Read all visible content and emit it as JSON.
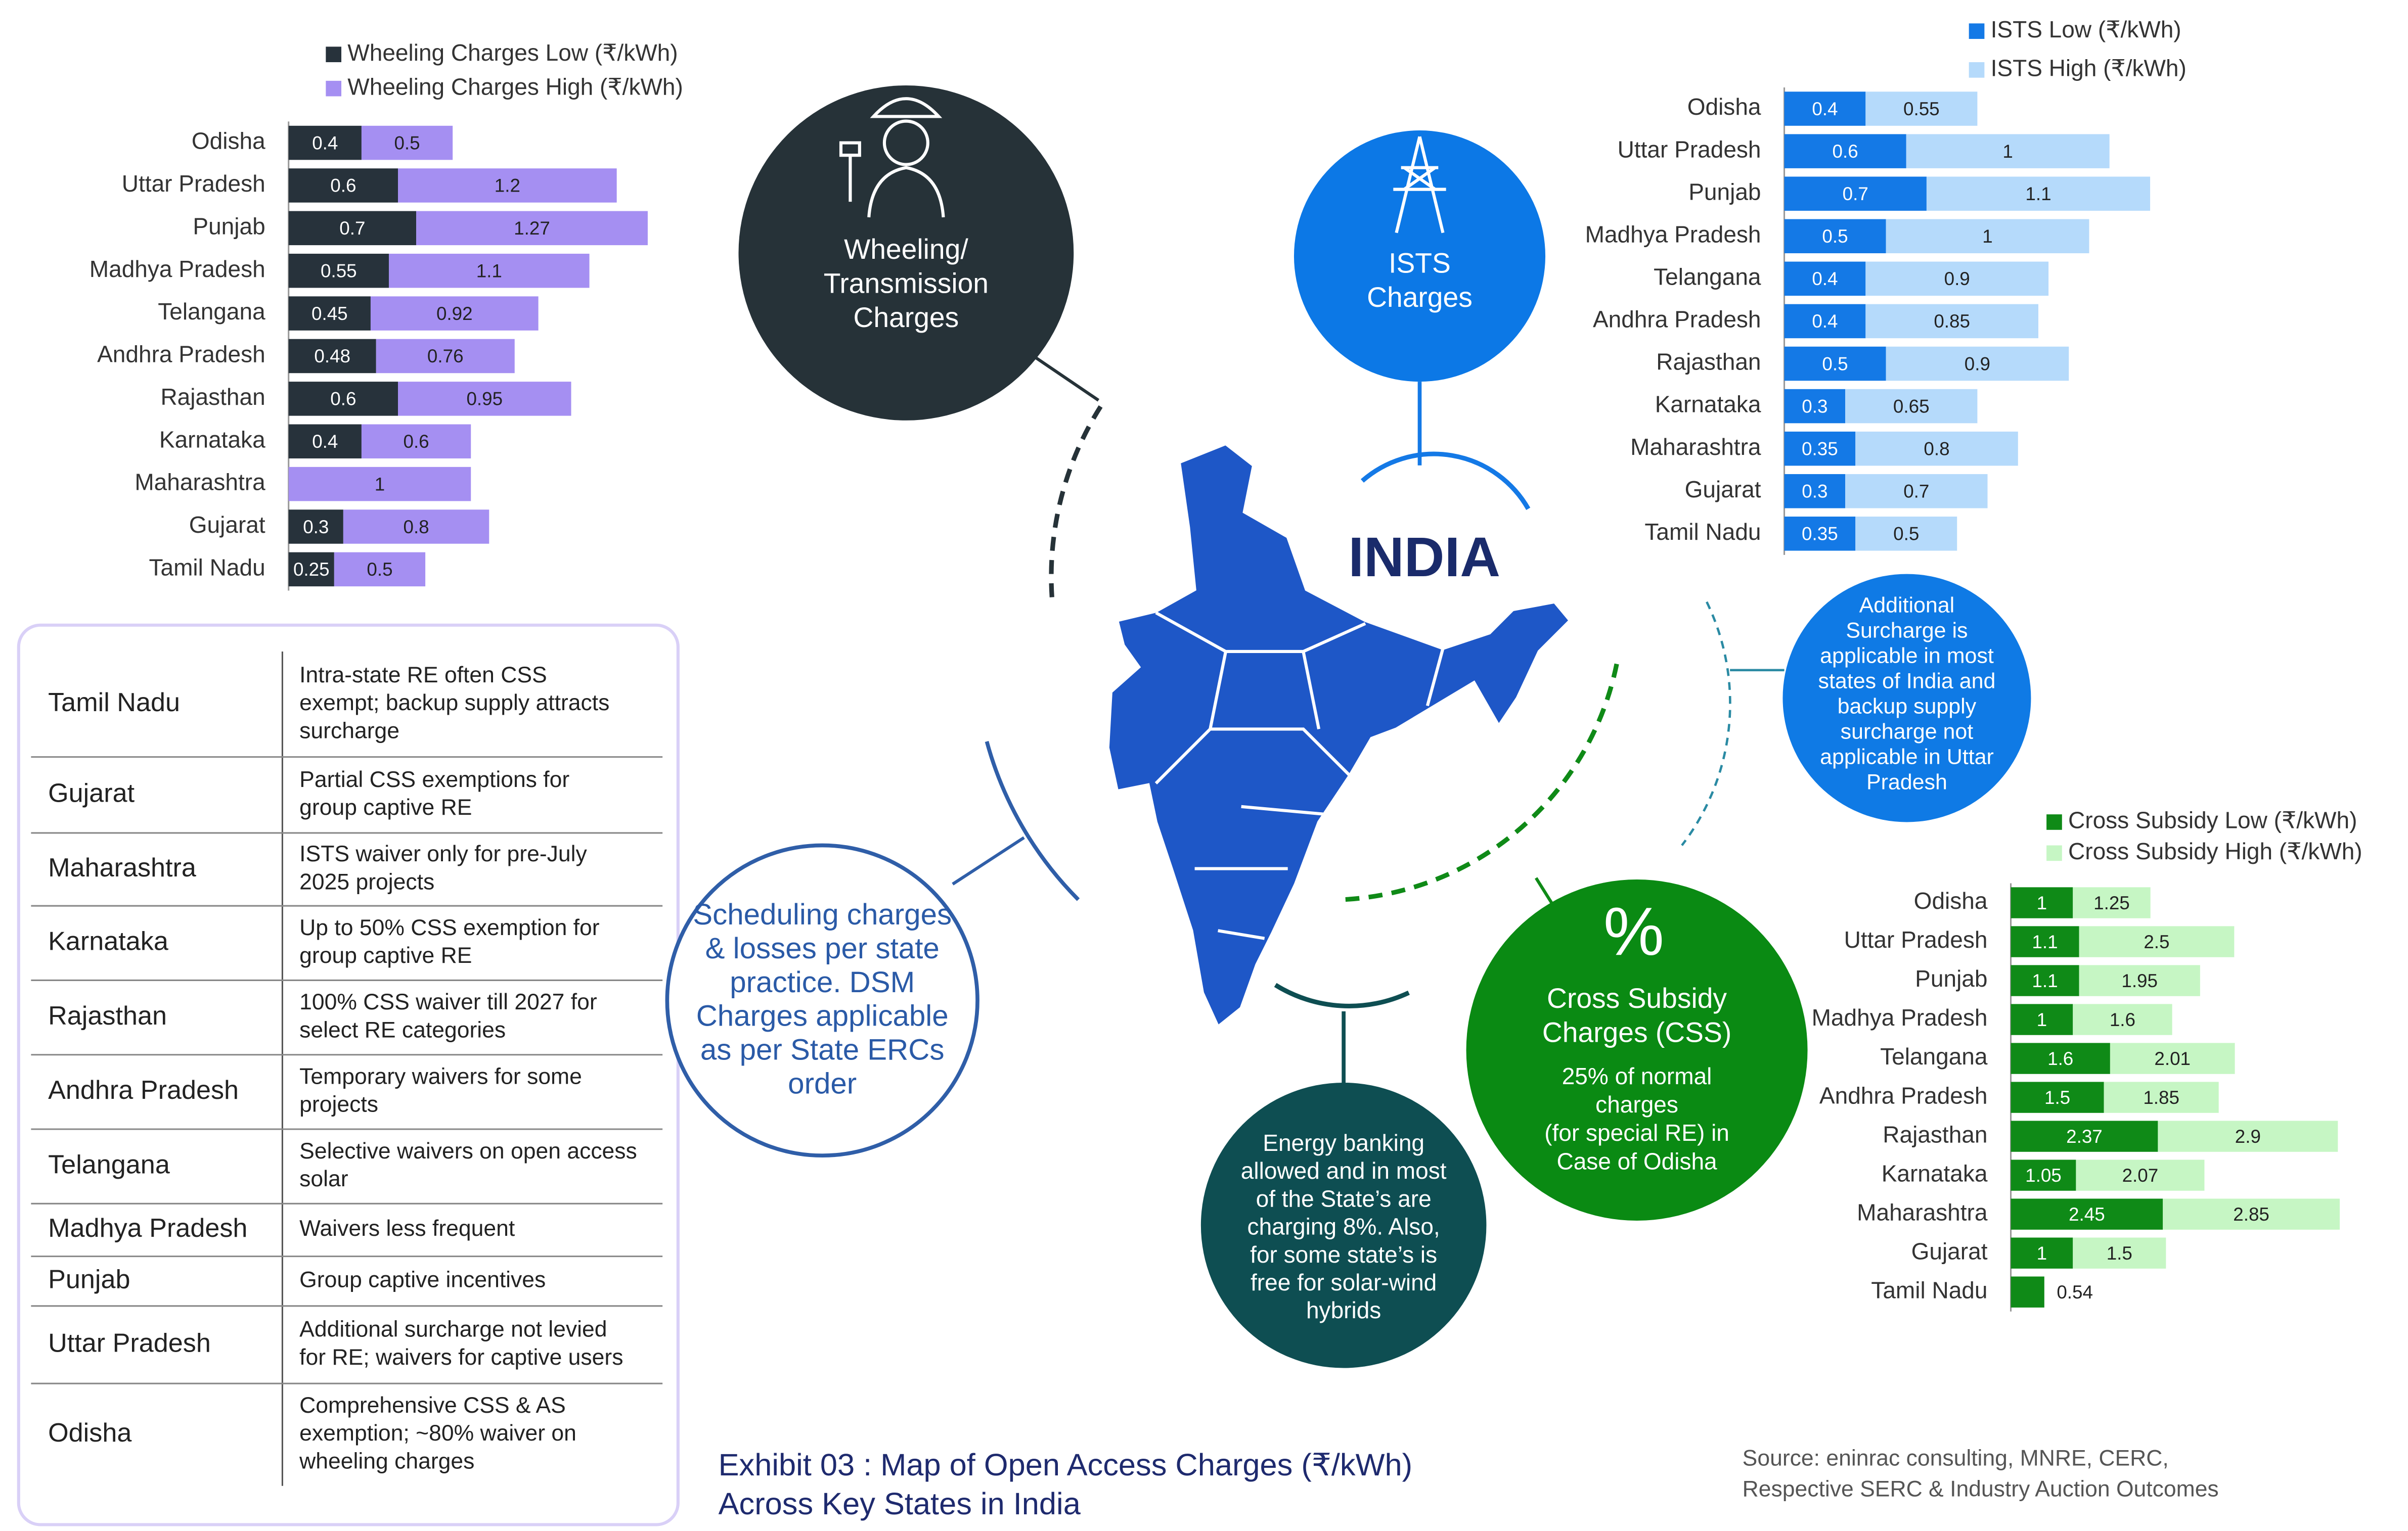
{
  "chart_data": [
    {
      "type": "bar",
      "orientation": "horizontal",
      "stacked": true,
      "categories": [
        "Odisha",
        "Uttar Pradesh",
        "Punjab",
        "Madhya Pradesh",
        "Telangana",
        "Andhra Pradesh",
        "Rajasthan",
        "Karnataka",
        "Maharashtra",
        "Gujarat",
        "Tamil Nadu"
      ],
      "series": [
        {
          "name": "Wheeling Charges Low (₹/kWh)",
          "color": "#27323b",
          "values": [
            0.4,
            0.6,
            0.7,
            0.55,
            0.45,
            0.48,
            0.6,
            0.4,
            null,
            0.3,
            0.25
          ]
        },
        {
          "name": "Wheeling Charges High (₹/kWh)",
          "color": "#a58ff2",
          "values": [
            0.5,
            1.2,
            1.27,
            1.1,
            0.92,
            0.76,
            0.95,
            0.6,
            1,
            0.8,
            0.5
          ]
        }
      ]
    },
    {
      "type": "bar",
      "orientation": "horizontal",
      "stacked": true,
      "categories": [
        "Odisha",
        "Uttar Pradesh",
        "Punjab",
        "Madhya Pradesh",
        "Telangana",
        "Andhra Pradesh",
        "Rajasthan",
        "Karnataka",
        "Maharashtra",
        "Gujarat",
        "Tamil Nadu"
      ],
      "series": [
        {
          "name": "ISTS Low (₹/kWh)",
          "color": "#1479e6",
          "values": [
            0.4,
            0.6,
            0.7,
            0.5,
            0.4,
            0.4,
            0.5,
            0.3,
            0.35,
            0.3,
            0.35
          ]
        },
        {
          "name": "ISTS High (₹/kWh)",
          "color": "#b5dafb",
          "values": [
            0.55,
            1,
            1.1,
            1,
            0.9,
            0.85,
            0.9,
            0.65,
            0.8,
            0.7,
            0.5
          ]
        }
      ]
    },
    {
      "type": "bar",
      "orientation": "horizontal",
      "stacked": true,
      "categories": [
        "Odisha",
        "Uttar Pradesh",
        "Punjab",
        "Madhya Pradesh",
        "Telangana",
        "Andhra Pradesh",
        "Rajasthan",
        "Karnataka",
        "Maharashtra",
        "Gujarat",
        "Tamil Nadu"
      ],
      "series": [
        {
          "name": "Cross Subsidy Low (₹/kWh)",
          "color": "#0f8a17",
          "values": [
            1,
            1.1,
            1.1,
            1,
            1.6,
            1.5,
            2.37,
            1.05,
            2.45,
            1,
            0.54
          ]
        },
        {
          "name": "Cross Subsidy High (₹/kWh)",
          "color": "#c6f6c4",
          "values": [
            1.25,
            2.5,
            1.95,
            1.6,
            2.01,
            1.85,
            2.9,
            2.07,
            2.85,
            1.5,
            null
          ]
        }
      ]
    }
  ],
  "bubbles": {
    "wheeling": [
      "Wheeling/",
      "Transmission",
      "Charges"
    ],
    "ists": [
      "ISTS",
      "Charges"
    ],
    "india": "INDIA",
    "surcharge": [
      "Additional",
      "Surcharge is",
      "applicable in most",
      "states of India and",
      "backup supply",
      "surcharge not",
      "applicable in Uttar",
      "Pradesh"
    ],
    "css_symbol": "%",
    "css_title": [
      "Cross Subsidy",
      "Charges (CSS)"
    ],
    "css_note": [
      "25% of normal",
      "charges",
      "(for special RE) in",
      "Case of Odisha"
    ],
    "banking": [
      "Energy banking",
      "allowed and in most",
      "of the State’s are",
      "charging 8%. Also,",
      "for some state’s is",
      "free for solar-wind",
      "hybrids"
    ],
    "scheduling": [
      "Scheduling charges",
      "& losses per state",
      "practice. DSM",
      "Charges applicable",
      "as per State ERCs",
      "order"
    ]
  },
  "table": {
    "rows": [
      [
        "Tamil Nadu",
        [
          "Intra-state RE often CSS",
          "exempt; backup supply attracts",
          "surcharge"
        ]
      ],
      [
        "Gujarat",
        [
          "Partial CSS exemptions for",
          "group captive RE"
        ]
      ],
      [
        "Maharashtra",
        [
          "ISTS waiver only for pre-July",
          "2025 projects"
        ]
      ],
      [
        "Karnataka",
        [
          "Up to 50% CSS exemption for",
          "group captive RE"
        ]
      ],
      [
        "Rajasthan",
        [
          "100% CSS waiver till 2027 for",
          "select RE categories"
        ]
      ],
      [
        "Andhra Pradesh",
        [
          "Temporary waivers for some",
          "projects"
        ]
      ],
      [
        "Telangana",
        [
          "Selective waivers on open access",
          "solar"
        ]
      ],
      [
        "Madhya Pradesh",
        [
          "Waivers less frequent"
        ]
      ],
      [
        "Punjab",
        [
          "Group captive incentives"
        ]
      ],
      [
        "Uttar Pradesh",
        [
          "Additional surcharge not levied",
          "for RE; waivers for captive users"
        ]
      ],
      [
        "Odisha",
        [
          "Comprehensive CSS & AS",
          "exemption; ~80% waiver on",
          "wheeling charges"
        ]
      ]
    ]
  },
  "exhibit": {
    "title": [
      "Exhibit 03 : Map of Open Access Charges (₹/kWh)",
      "Across Key States in India"
    ],
    "source": [
      "Source: eninrac consulting, MNRE, CERC,",
      "Respective SERC & Industry Auction Outcomes"
    ]
  }
}
